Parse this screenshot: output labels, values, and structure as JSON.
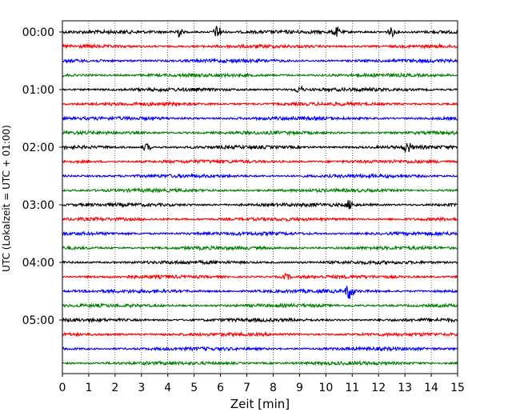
{
  "chart_data": {
    "type": "line",
    "title": "",
    "xlabel": "Zeit  [min]",
    "ylabel": "UTC (Lokalzeit = UTC + 01:00)",
    "xlim": [
      0,
      15
    ],
    "x_ticks": [
      "0",
      "1",
      "2",
      "3",
      "4",
      "5",
      "6",
      "7",
      "8",
      "9",
      "10",
      "11",
      "12",
      "13",
      "14",
      "15"
    ],
    "y_ticks": [
      "00:00",
      "01:00",
      "02:00",
      "03:00",
      "04:00",
      "05:00"
    ],
    "trace_colors": [
      "#000000",
      "#ff0000",
      "#0000ff",
      "#008000"
    ],
    "trace_count": 24,
    "trace_interval_min": 15,
    "grid_vertical": true,
    "events": [
      {
        "trace": 0,
        "x": 4.4,
        "amp": 6
      },
      {
        "trace": 0,
        "x": 5.9,
        "amp": 8
      },
      {
        "trace": 0,
        "x": 10.4,
        "amp": 5
      },
      {
        "trace": 0,
        "x": 12.5,
        "amp": 5
      },
      {
        "trace": 4,
        "x": 9.0,
        "amp": 4
      },
      {
        "trace": 8,
        "x": 13.1,
        "amp": 6
      },
      {
        "trace": 8,
        "x": 3.2,
        "amp": 4
      },
      {
        "trace": 12,
        "x": 10.9,
        "amp": 5
      },
      {
        "trace": 18,
        "x": 10.9,
        "amp": 9
      },
      {
        "trace": 17,
        "x": 8.5,
        "amp": 3
      }
    ]
  }
}
